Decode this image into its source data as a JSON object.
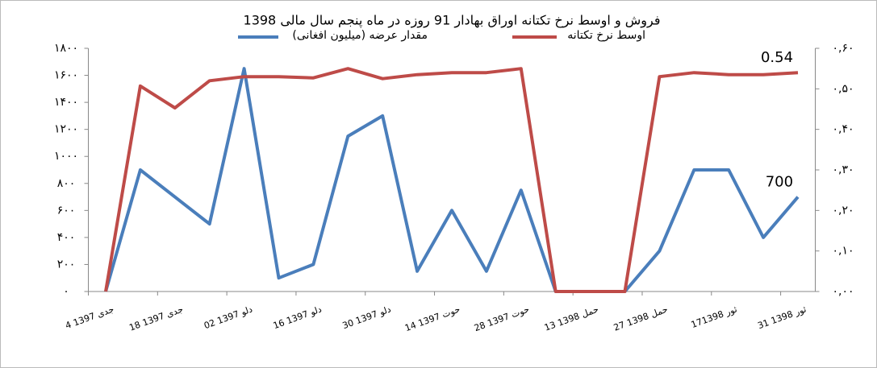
{
  "chart_data": {
    "type": "line",
    "title": "فروش و اوسط نرخ تکتانه اوراق بهادار 91 روزه در ماه پنجم سال مالی 1398",
    "categories": [
      "4 جدی 1397",
      null,
      "18 جدی 1397",
      null,
      "02 دلو 1397",
      null,
      "16 دلو 1397",
      null,
      "30 دلو 1397",
      null,
      "14 حوت 1397",
      null,
      "28 حوت 1397",
      null,
      "13 حمل 1398",
      null,
      "27 حمل 1398",
      null,
      "17ثور 1398",
      null,
      "31 ثور 1398"
    ],
    "series": [
      {
        "name": "مقدار عرضه (میلیون افغانی)",
        "color": "#4a7ebb",
        "values": [
          0,
          900,
          700,
          500,
          1650,
          100,
          200,
          1150,
          1300,
          150,
          600,
          150,
          750,
          0,
          0,
          0,
          300,
          900,
          900,
          400,
          700
        ],
        "value_labels": [
          null,
          null,
          null,
          null,
          null,
          null,
          null,
          null,
          null,
          null,
          null,
          null,
          null,
          null,
          null,
          null,
          null,
          null,
          null,
          null,
          "700"
        ]
      },
      {
        "name": "اوسط نرخ تکتانه",
        "color": "#be4b48",
        "axis": "y2",
        "values": [
          0,
          0.507,
          0.453,
          0.52,
          0.53,
          0.53,
          0.527,
          0.55,
          0.525,
          0.535,
          0.54,
          0.54,
          0.55,
          0,
          0,
          0,
          0.53,
          0.54,
          0.535,
          0.535,
          0.54
        ],
        "value_labels": [
          null,
          null,
          null,
          null,
          null,
          null,
          null,
          null,
          null,
          null,
          null,
          null,
          null,
          null,
          null,
          null,
          null,
          null,
          null,
          null,
          "0.54"
        ]
      }
    ],
    "ylim": [
      0,
      1800
    ],
    "yticks": [
      {
        "value": 0,
        "label": "۰"
      },
      {
        "value": 200,
        "label": "۲۰۰"
      },
      {
        "value": 400,
        "label": "۴۰۰"
      },
      {
        "value": 600,
        "label": "۶۰۰"
      },
      {
        "value": 800,
        "label": "۸۰۰"
      },
      {
        "value": 1000,
        "label": "۱۰۰۰"
      },
      {
        "value": 1200,
        "label": "۱۲۰۰"
      },
      {
        "value": 1400,
        "label": "۱۴۰۰"
      },
      {
        "value": 1600,
        "label": "۱۶۰۰"
      },
      {
        "value": 1800,
        "label": "۱۸۰۰"
      }
    ],
    "y2lim": [
      0,
      0.6
    ],
    "y2ticks": [
      {
        "value": 0,
        "label": "۰,۰۰"
      },
      {
        "value": 0.1,
        "label": "۰,۱۰"
      },
      {
        "value": 0.2,
        "label": "۰,۲۰"
      },
      {
        "value": 0.3,
        "label": "۰,۳۰"
      },
      {
        "value": 0.4,
        "label": "۰,۴۰"
      },
      {
        "value": 0.5,
        "label": "۰,۵۰"
      },
      {
        "value": 0.6,
        "label": "۰,۶۰"
      }
    ],
    "legend": "top"
  }
}
